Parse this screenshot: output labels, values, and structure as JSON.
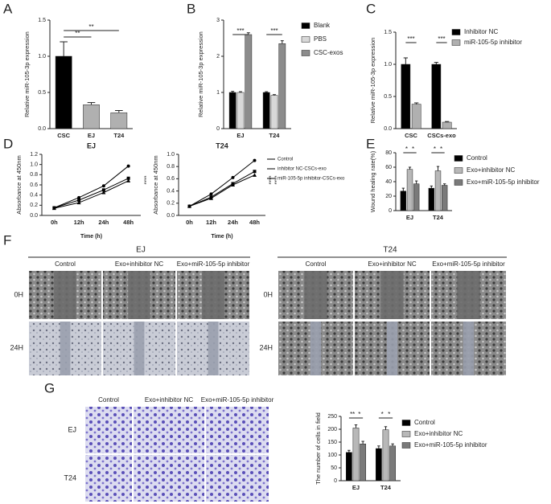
{
  "chart_data": [
    {
      "type": "bar",
      "ylabel": "Relative miR-105-3p expression",
      "categories": [
        "CSC",
        "EJ",
        "T24"
      ],
      "values": [
        1.0,
        0.33,
        0.22
      ],
      "errors": [
        0.2,
        0.03,
        0.03
      ],
      "colors": [
        "#000000",
        "#b0b0b0",
        "#b0b0b0"
      ],
      "ylim": [
        0,
        1.5
      ],
      "yticks": [
        {
          "value": 0,
          "label": "0.0"
        },
        {
          "value": 0.5,
          "label": "0.5"
        },
        {
          "value": 1,
          "label": "1.0"
        },
        {
          "value": 1.5,
          "label": "1.5"
        }
      ],
      "annotations": [
        "**",
        "**"
      ]
    },
    {
      "type": "bar",
      "ylabel": "Relative miR-105-3p expression",
      "categories": [
        "EJ",
        "T24"
      ],
      "series": [
        {
          "name": "Blank",
          "color": "#000000",
          "values": [
            1.0,
            1.0
          ],
          "errors": [
            0.03,
            0.02
          ]
        },
        {
          "name": "PBS",
          "color": "#d8d8d8",
          "values": [
            1.0,
            0.92
          ],
          "errors": [
            0.02,
            0.02
          ]
        },
        {
          "name": "CSC-exos",
          "color": "#8c8c8c",
          "values": [
            2.6,
            2.35
          ],
          "errors": [
            0.05,
            0.08
          ]
        }
      ],
      "ylim": [
        0,
        3
      ],
      "yticks": [
        0,
        1,
        2,
        3
      ],
      "annotations": [
        "***",
        "***"
      ]
    },
    {
      "type": "bar",
      "ylabel": "Relative miR-105-3p expression",
      "categories": [
        "CSC",
        "CSCs-exo"
      ],
      "series": [
        {
          "name": "Inhibitor NC",
          "color": "#000000",
          "values": [
            1.0,
            1.0
          ],
          "errors": [
            0.1,
            0.03
          ]
        },
        {
          "name": "miR-105-5p inhibitor",
          "color": "#b0b0b0",
          "values": [
            0.38,
            0.1
          ],
          "errors": [
            0.02,
            0.01
          ]
        }
      ],
      "ylim": [
        0,
        1.5
      ],
      "yticks": [
        {
          "value": 0,
          "label": "0.0"
        },
        {
          "value": 0.5,
          "label": "0.5"
        },
        {
          "value": 1,
          "label": "1.0"
        },
        {
          "value": 1.5,
          "label": "1.5"
        }
      ],
      "annotations": [
        "***",
        "***"
      ]
    },
    {
      "type": "line",
      "title": "EJ",
      "xlabel": "Time (h)",
      "ylabel": "Absorbance at 450nm",
      "categories": [
        "0h",
        "12h",
        "24h",
        "48h"
      ],
      "series": [
        {
          "name": "Control",
          "color": "#000000",
          "values": [
            0.15,
            0.35,
            0.58,
            0.97
          ]
        },
        {
          "name": "inhibitor NC-CSCs-exo",
          "color": "#000000",
          "values": [
            0.15,
            0.3,
            0.5,
            0.73
          ]
        },
        {
          "name": "miR-105-5p inhibitor-CSCs-exo",
          "color": "#000000",
          "values": [
            0.14,
            0.25,
            0.45,
            0.68
          ]
        }
      ],
      "ylim": [
        0,
        1.2
      ],
      "yticks": [
        {
          "value": 0,
          "label": "0.0"
        },
        {
          "value": 0.2,
          "label": "0.2"
        },
        {
          "value": 0.4,
          "label": "0.4"
        },
        {
          "value": 0.6,
          "label": "0.6"
        },
        {
          "value": 0.8,
          "label": "0.8"
        },
        {
          "value": 1,
          "label": "1.0"
        },
        {
          "value": 1.2,
          "label": "1.2"
        }
      ],
      "annotations": [
        "****"
      ]
    },
    {
      "type": "line",
      "title": "T24",
      "xlabel": "Time (h)",
      "ylabel": "Absorbance at 450nm",
      "categories": [
        "0h",
        "12h",
        "24h",
        "48h"
      ],
      "series": [
        {
          "name": "Control",
          "color": "#000000",
          "values": [
            0.15,
            0.35,
            0.62,
            0.9
          ]
        },
        {
          "name": "inhibitor NC-CSCs-exo",
          "color": "#000000",
          "values": [
            0.15,
            0.3,
            0.52,
            0.72
          ]
        },
        {
          "name": "miR-105-5p inhibitor-CSCs-exo",
          "color": "#000000",
          "values": [
            0.15,
            0.28,
            0.5,
            0.66
          ]
        }
      ],
      "ylim": [
        0,
        1.0
      ],
      "yticks": [
        {
          "value": 0,
          "label": "0.0"
        },
        {
          "value": 0.2,
          "label": "0.2"
        },
        {
          "value": 0.4,
          "label": "0.4"
        },
        {
          "value": 0.6,
          "label": "0.6"
        },
        {
          "value": 0.8,
          "label": "0.8"
        },
        {
          "value": 1,
          "label": "1.0"
        }
      ],
      "annotations": [
        "****",
        "****"
      ]
    },
    {
      "type": "bar",
      "ylabel": "Wound healing rate(%)",
      "categories": [
        "EJ",
        "T24"
      ],
      "series": [
        {
          "name": "Control",
          "color": "#000000",
          "values": [
            27,
            31
          ],
          "errors": [
            4,
            3
          ]
        },
        {
          "name": "Exo+inhibitor NC",
          "color": "#b8b8b8",
          "values": [
            57,
            55
          ],
          "errors": [
            3,
            6
          ]
        },
        {
          "name": "Exo+miR-105-5p inhibitor",
          "color": "#7a7a7a",
          "values": [
            37,
            35
          ],
          "errors": [
            4,
            2
          ]
        }
      ],
      "ylim": [
        0,
        80
      ],
      "yticks": [
        0,
        20,
        40,
        60,
        80
      ],
      "annotations": [
        "*",
        "*",
        "*",
        "*"
      ]
    },
    {
      "type": "bar",
      "ylabel": "The number of cells in field",
      "categories": [
        "EJ",
        "T24"
      ],
      "series": [
        {
          "name": "Control",
          "color": "#000000",
          "values": [
            110,
            125
          ],
          "errors": [
            8,
            10
          ]
        },
        {
          "name": "Exo+inhibitor NC",
          "color": "#b8b8b8",
          "values": [
            205,
            198
          ],
          "errors": [
            12,
            12
          ]
        },
        {
          "name": "Exo+miR-105-5p inhibitor",
          "color": "#7a7a7a",
          "values": [
            143,
            135
          ],
          "errors": [
            10,
            8
          ]
        }
      ],
      "ylim": [
        0,
        250
      ],
      "yticks": [
        0,
        50,
        100,
        150,
        200,
        250
      ],
      "annotations": [
        "**",
        "*",
        "*",
        "*"
      ]
    }
  ],
  "panel_letters": [
    "A",
    "B",
    "C",
    "D",
    "E",
    "F",
    "G"
  ],
  "figure_f": {
    "groups": [
      "EJ",
      "T24"
    ],
    "columns": [
      "Control",
      "Exo+inhibitor NC",
      "Exo+miR-105-5p inhibitor"
    ],
    "rows": [
      "0H",
      "24H"
    ]
  },
  "figure_g": {
    "columns": [
      "Control",
      "Exo+inhibitor NC",
      "Exo+miR-105-5p inhibitor"
    ],
    "rows": [
      "EJ",
      "T24"
    ]
  }
}
